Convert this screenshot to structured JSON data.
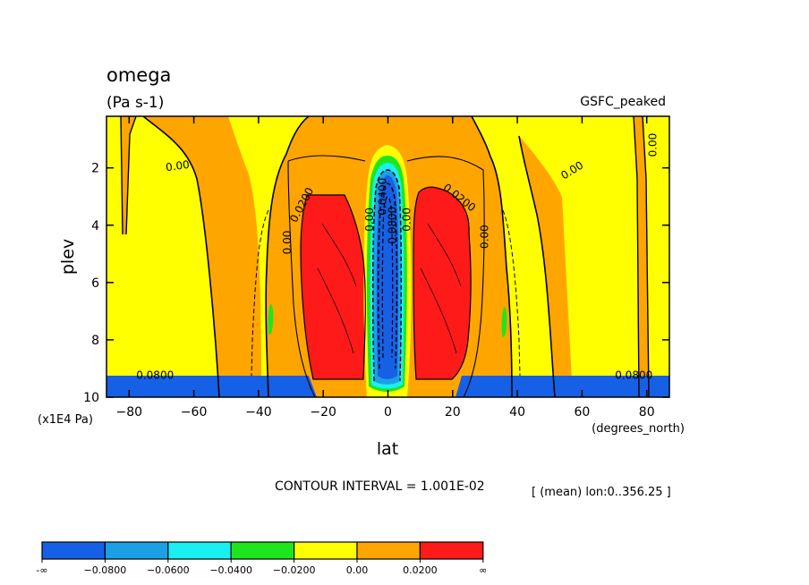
{
  "chart_data": {
    "type": "contour",
    "title": "omega",
    "units": "(Pa s-1)",
    "dataset": "GSFC_peaked",
    "xlabel": "lat",
    "xunits": "(degrees_north)",
    "ylabel": "plev",
    "yunits": "(x1E4 Pa)",
    "xlim": [
      -87,
      87
    ],
    "ylim": [
      10,
      0.2
    ],
    "x_ticks": [
      -80,
      -60,
      -40,
      -20,
      0,
      20,
      40,
      60,
      80
    ],
    "x_tick_labels": [
      "−80",
      "−60",
      "−40",
      "−20",
      "0",
      "20",
      "40",
      "60",
      "80"
    ],
    "y_ticks": [
      2,
      4,
      6,
      8,
      10
    ],
    "y_tick_labels": [
      "2",
      "4",
      "6",
      "8",
      "10"
    ],
    "contour_interval_text": "CONTOUR INTERVAL = 1.001E-02",
    "mean_note": "[ (mean) lon:0..356.25 ]",
    "colorbar": {
      "colors": [
        "#1660e6",
        "#1ba0e6",
        "#19f0f0",
        "#1ee61e",
        "#ffff00",
        "#ffa500",
        "#ff1a1a"
      ],
      "labels": [
        "-∞",
        "−0.0800",
        "−0.0600",
        "−0.0400",
        "−0.0200",
        "0.00",
        "0.0200",
        "∞"
      ]
    },
    "contour_labels": [
      {
        "text": "0.00",
        "lat": -65,
        "plev": 1.95,
        "angle": -8
      },
      {
        "text": "0.0200",
        "lat": -26.5,
        "plev": 3.3,
        "angle": -62
      },
      {
        "text": "0.0200",
        "lat": 22,
        "plev": 3.05,
        "angle": 38
      },
      {
        "text": "0.00",
        "lat": 57,
        "plev": 2.1,
        "angle": -32
      },
      {
        "text": "0.00",
        "lat": 82,
        "plev": 1.2,
        "angle": -90
      },
      {
        "text": "0.00",
        "lat": -31,
        "plev": 4.6,
        "angle": -90
      },
      {
        "text": "0.00",
        "lat": 30,
        "plev": 4.4,
        "angle": -90
      },
      {
        "text": "0.00",
        "lat": -5.5,
        "plev": 3.8,
        "angle": -90
      },
      {
        "text": "0.0400",
        "lat": -1.5,
        "plev": 3.0,
        "angle": -90
      },
      {
        "text": "0.0800",
        "lat": 1.5,
        "plev": 4.0,
        "angle": -90
      },
      {
        "text": "0.00",
        "lat": 6,
        "plev": 3.8,
        "angle": -90
      },
      {
        "text": "0.0800",
        "lat": -72,
        "plev": 9.25,
        "angle": 0
      },
      {
        "text": "0.0800",
        "lat": 76,
        "plev": 9.25,
        "angle": 0
      }
    ]
  }
}
